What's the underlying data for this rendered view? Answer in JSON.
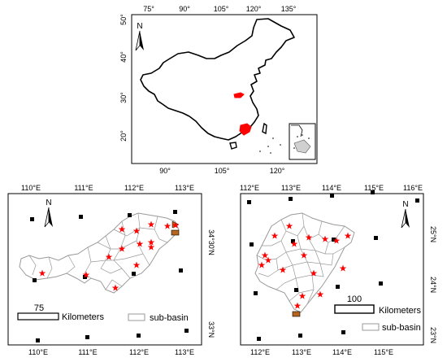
{
  "china_map": {
    "top_lon_ticks": [
      "75°",
      "90°",
      "105°",
      "120°",
      "135°"
    ],
    "bottom_lon_ticks": [
      "90°",
      "105°",
      "120°"
    ],
    "lat_ticks": [
      "50°",
      "40°",
      "30°",
      "20°"
    ],
    "north_label": "N"
  },
  "left_map": {
    "top_lon_ticks": [
      "110°E",
      "111°E",
      "112°E",
      "113°E"
    ],
    "bottom_lon_ticks": [
      "110°E",
      "111°E",
      "112°E",
      "113°E"
    ],
    "lat_ticks": [
      "34°30'N",
      "33°N"
    ],
    "north_label": "N",
    "scale_value": "75",
    "scale_unit": "Kilometers",
    "legend_label": "sub-basin"
  },
  "right_map": {
    "top_lon_ticks": [
      "112°E",
      "113°E",
      "114°E",
      "115°E",
      "116°E"
    ],
    "bottom_lon_ticks": [
      "112°E",
      "113°E",
      "114°E",
      "115°E"
    ],
    "lat_ticks": [
      "25°N",
      "24°N",
      "23°N"
    ],
    "north_label": "N",
    "scale_value": "100",
    "scale_unit": "Kilometers",
    "legend_label": "sub-basin"
  },
  "colors": {
    "station_marker": "#000000",
    "star_marker": "#ff0000",
    "outlet_marker": "#b5651d",
    "subbasin_line": "#9a9a9a",
    "highlight": "#ff0000"
  }
}
